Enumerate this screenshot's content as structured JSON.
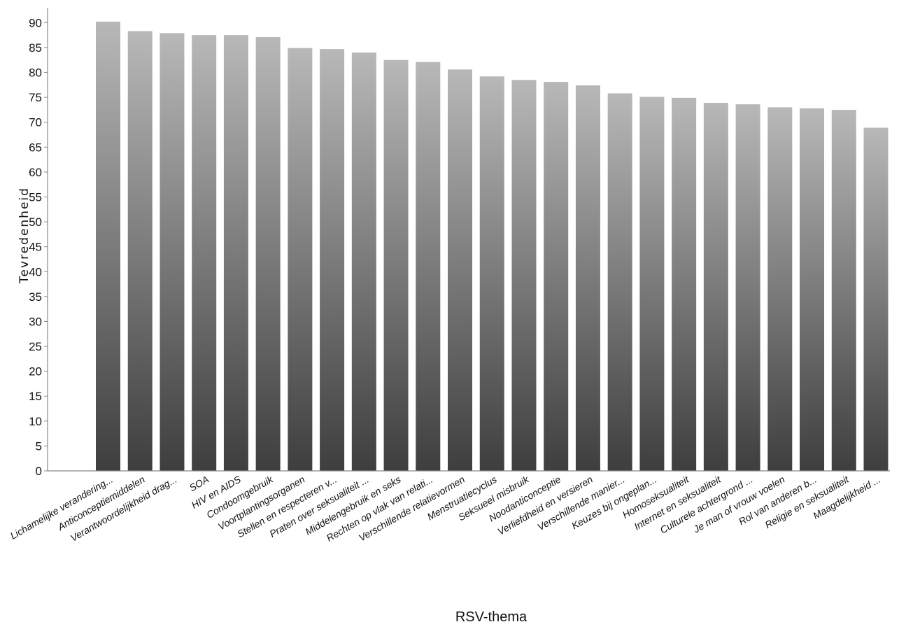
{
  "chart_data": {
    "type": "bar",
    "title": "",
    "xlabel": "RSV-thema",
    "ylabel": "Tevredenheid",
    "ylim": [
      0,
      93
    ],
    "yticks": [
      0,
      5,
      10,
      15,
      20,
      25,
      30,
      35,
      40,
      45,
      50,
      55,
      60,
      65,
      70,
      75,
      80,
      85,
      90
    ],
    "grid": false,
    "legend": "none",
    "bar_color_top": "#b8b8b8",
    "bar_color_bottom": "#3e3e3e",
    "categories": [
      "Lichamelijke verandering...",
      "Anticonceptiemiddelen",
      "Verantwoordelijkheid drag...",
      "SOA",
      "HIV en AIDS",
      "Condoomgebruik",
      "Voortplantingsorganen",
      "Stellen en respecteren v...",
      "Praten over seksualiteit ...",
      "Middelengebruik en seks",
      "Rechten op vlak van relati...",
      "Verschillende relatievormen",
      "Menstruatiecyclus",
      "Seksueel misbruik",
      "Noodanticonceptie",
      "Verliefdheid en versieren",
      "Verschillende manier...",
      "Keuzes bij ongeplan...",
      "Homoseksualiteit",
      "Internet en seksualiteit",
      "Culturele achtergrond ...",
      "Je man of vrouw voelen",
      "Rol van anderen b...",
      "Religie en seksualiteit",
      "Maagdelijkheid ..."
    ],
    "values": [
      90.2,
      88.3,
      87.9,
      87.5,
      87.5,
      87.1,
      84.9,
      84.7,
      84.0,
      82.5,
      82.1,
      80.6,
      79.2,
      78.5,
      78.1,
      77.4,
      75.8,
      75.1,
      74.9,
      73.9,
      73.6,
      73.0,
      72.8,
      72.5,
      68.9
    ]
  }
}
